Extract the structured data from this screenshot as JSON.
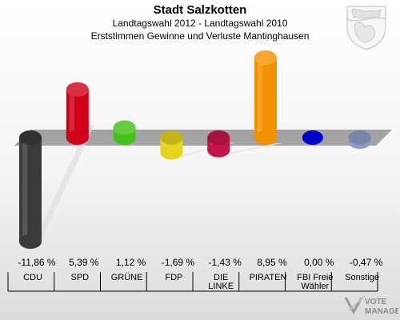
{
  "header": {
    "title": "Stadt Salzkotten",
    "subtitle": "Landtagswahl 2012 - Landtagswahl 2010",
    "subtitle2": "Erststimmen Gewinne und Verluste Mantinghausen"
  },
  "logo": {
    "text_top": "VOTE",
    "text_bottom": "MANAGER"
  },
  "seal": {
    "icon": "coat-of-arms-icon"
  },
  "chart_data": {
    "type": "bar",
    "categories": [
      "CDU",
      "SPD",
      "GRÜNE",
      "FDP",
      "DIE LINKE",
      "PIRATEN",
      "FBI Freie Wähler",
      "Sonstige"
    ],
    "category_lines": [
      [
        "CDU"
      ],
      [
        "SPD"
      ],
      [
        "GRÜNE"
      ],
      [
        "FDP"
      ],
      [
        "DIE",
        "LINKE"
      ],
      [
        "PIRATEN"
      ],
      [
        "FBI Freie",
        "Wähler"
      ],
      [
        "Sonstige"
      ]
    ],
    "values": [
      -11.86,
      5.39,
      1.12,
      -1.69,
      -1.43,
      8.95,
      0.0,
      -0.47
    ],
    "value_labels": [
      "-11,86 %",
      "5,39 %",
      "1,12 %",
      "-1,69 %",
      "-1,43 %",
      "8,95 %",
      "0,00 %",
      "-0,47 %"
    ],
    "colors": [
      "#3a3a3a",
      "#d0021b",
      "#44c21a",
      "#e6d41e",
      "#c2164a",
      "#f39200",
      "#0000cc",
      "#8c9cc8"
    ],
    "ylim": [
      -11.86,
      8.95
    ],
    "grid": false,
    "legend": "none"
  }
}
